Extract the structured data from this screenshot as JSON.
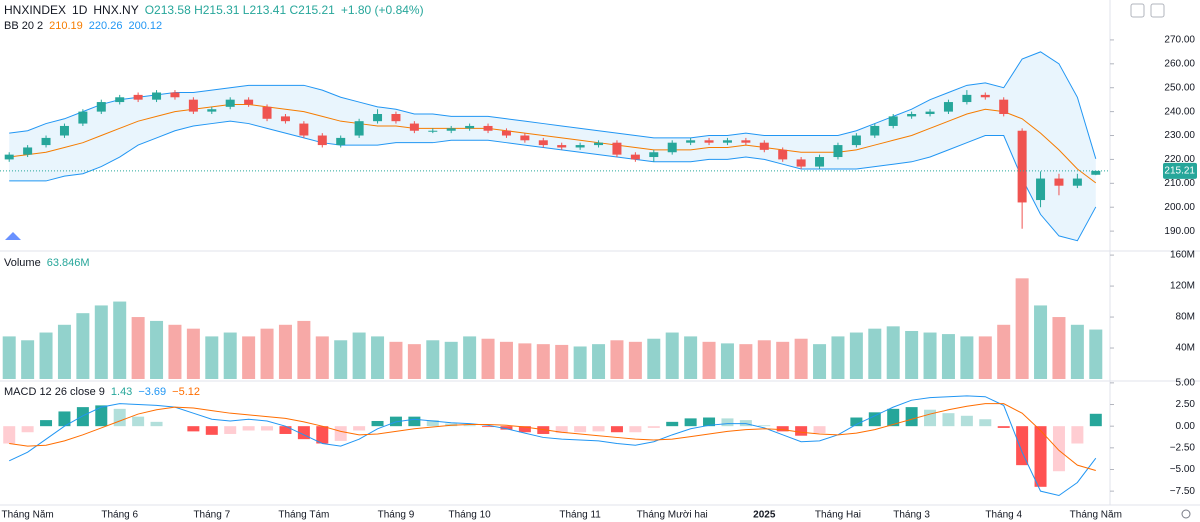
{
  "header": {
    "symbol": "HNXINDEX",
    "interval": "1D",
    "exchange": "HNX.NY",
    "ohlc": "O213.58 H215.31 L213.41 C215.21",
    "change": "+1.80 (+0.84%)"
  },
  "chart_data": [
    {
      "type": "candlestick",
      "title": "BB 20 2",
      "open": [
        220,
        222,
        226,
        230,
        235,
        240,
        244,
        247,
        245,
        248,
        245,
        240,
        242,
        245,
        242,
        238,
        235,
        230,
        226,
        230,
        236,
        239,
        235,
        232,
        232,
        233,
        234,
        232,
        230,
        228,
        226,
        225,
        226,
        227,
        222,
        221,
        223,
        227,
        228,
        227,
        228,
        227,
        224,
        220,
        217,
        221,
        226,
        230,
        234,
        238,
        239,
        240,
        244,
        247,
        245,
        232,
        203,
        212,
        209,
        213.58
      ],
      "high": [
        223,
        226,
        230,
        235,
        241,
        245,
        247,
        248,
        249,
        249,
        246,
        242,
        246,
        246,
        243,
        239,
        236,
        231,
        230,
        237,
        241,
        240,
        236,
        233,
        234,
        235,
        235,
        233,
        231,
        229,
        227,
        227,
        228,
        228,
        223,
        224,
        228,
        229,
        229,
        229,
        229,
        228,
        225,
        221,
        222,
        227,
        231,
        235,
        239,
        240,
        241,
        245,
        249,
        248,
        246,
        233,
        215,
        214,
        214,
        215.31
      ],
      "low": [
        219,
        221,
        225,
        229,
        234,
        239,
        243,
        244,
        244,
        245,
        239,
        239,
        241,
        242,
        236,
        235,
        229,
        225,
        225,
        229,
        235,
        235,
        231,
        231,
        231,
        232,
        231,
        229,
        227,
        225,
        224,
        224,
        225,
        221,
        219,
        219,
        222,
        226,
        226,
        226,
        226,
        223,
        219,
        216,
        216,
        220,
        225,
        229,
        233,
        237,
        238,
        239,
        243,
        245,
        238,
        191,
        200,
        205,
        208,
        213.41
      ],
      "close": [
        222,
        225,
        229,
        234,
        240,
        244,
        246,
        245,
        248,
        246,
        240,
        241,
        245,
        243,
        237,
        236,
        230,
        226,
        229,
        236,
        239,
        236,
        232,
        232,
        233,
        234,
        232,
        230,
        228,
        226,
        225,
        226,
        227,
        222,
        220,
        223,
        227,
        228,
        227,
        228,
        227,
        224,
        220,
        217,
        221,
        226,
        230,
        234,
        238,
        239,
        240,
        244,
        247,
        246,
        239,
        202,
        212,
        209,
        212,
        215.21
      ],
      "up_color": "#26a69a",
      "down_color": "#ef5350",
      "bands": {
        "middle": [
          221,
          222,
          223,
          225,
          227,
          230,
          233,
          236,
          238,
          240,
          241,
          242,
          243,
          243,
          242,
          241,
          240,
          238,
          236,
          235,
          234,
          234,
          233,
          233,
          233,
          233,
          233,
          232,
          231,
          230,
          229,
          228,
          227,
          226,
          225,
          224,
          224,
          224,
          225,
          225,
          226,
          225,
          224,
          223,
          223,
          223,
          224,
          226,
          228,
          230,
          233,
          236,
          239,
          241,
          240,
          237,
          231,
          224,
          216,
          210.19
        ],
        "upper": [
          231,
          232,
          235,
          237,
          240,
          243,
          245,
          246,
          247,
          248,
          248,
          249,
          250,
          251,
          251,
          251,
          251,
          249,
          246,
          244,
          242,
          241,
          239,
          239,
          238,
          238,
          238,
          237,
          236,
          235,
          234,
          233,
          232,
          231,
          230,
          229,
          229,
          229,
          230,
          230,
          231,
          230,
          230,
          230,
          230,
          230,
          232,
          235,
          238,
          241,
          245,
          248,
          251,
          252,
          250,
          262,
          265,
          260,
          246,
          220.26
        ],
        "lower": [
          211,
          211,
          211,
          213,
          214,
          217,
          221,
          226,
          229,
          232,
          234,
          235,
          236,
          235,
          233,
          231,
          229,
          227,
          226,
          226,
          226,
          227,
          227,
          227,
          228,
          228,
          228,
          227,
          226,
          225,
          224,
          223,
          222,
          221,
          220,
          219,
          219,
          219,
          220,
          220,
          221,
          220,
          218,
          216,
          216,
          216,
          216,
          217,
          218,
          219,
          221,
          224,
          227,
          230,
          230,
          212,
          197,
          188,
          186,
          200.12
        ],
        "middle_color": "#f57c00",
        "band_color": "#2196f3",
        "fill_color": "#e3f2fd"
      },
      "ylim": [
        182.1,
        286.7
      ],
      "yticks": [
        {
          "value": 190,
          "label": "190.00"
        },
        {
          "value": 200,
          "label": "200.00"
        },
        {
          "value": 210,
          "label": "210.00"
        },
        {
          "value": 220,
          "label": "220.00"
        },
        {
          "value": 230,
          "label": "230.00"
        },
        {
          "value": 240,
          "label": "240.00"
        },
        {
          "value": 250,
          "label": "250.00"
        },
        {
          "value": 260,
          "label": "260.00"
        },
        {
          "value": 270,
          "label": "270.00"
        }
      ]
    },
    {
      "type": "bar",
      "title": "Volume",
      "legend_value": "63.846M",
      "values": [
        55,
        50,
        60,
        70,
        85,
        95,
        100,
        80,
        75,
        70,
        65,
        55,
        60,
        55,
        65,
        70,
        75,
        55,
        50,
        60,
        55,
        48,
        45,
        50,
        48,
        55,
        52,
        48,
        46,
        45,
        44,
        42,
        45,
        50,
        48,
        52,
        60,
        55,
        48,
        46,
        45,
        50,
        48,
        52,
        45,
        55,
        60,
        65,
        68,
        62,
        60,
        58,
        55,
        55,
        70,
        130,
        95,
        80,
        70,
        63.846
      ],
      "ylim": [
        0,
        164
      ],
      "yticks": [
        {
          "value": 40,
          "label": "40M"
        },
        {
          "value": 80,
          "label": "80M"
        },
        {
          "value": 120,
          "label": "120M"
        },
        {
          "value": 160,
          "label": "160M"
        }
      ]
    },
    {
      "type": "macd",
      "title": "MACD 12 26 close 9",
      "legend_values": [
        "1.43",
        "−3.69",
        "−5.12"
      ],
      "histogram": [
        -2.0,
        -0.7,
        0.7,
        1.7,
        2.2,
        2.4,
        2.0,
        1.1,
        0.5,
        0.0,
        -0.6,
        -1.0,
        -0.9,
        -0.5,
        -0.5,
        -0.9,
        -1.5,
        -2.0,
        -1.7,
        -0.5,
        0.6,
        1.1,
        1.1,
        0.7,
        0.3,
        0.1,
        -0.1,
        -0.4,
        -0.7,
        -0.9,
        -0.8,
        -0.7,
        -0.6,
        -0.7,
        -0.7,
        -0.2,
        0.5,
        0.9,
        1.0,
        0.9,
        0.7,
        0.1,
        -0.6,
        -1.1,
        -0.8,
        0.0,
        1.0,
        1.6,
        2.0,
        2.2,
        1.9,
        1.5,
        1.2,
        0.8,
        -0.2,
        -4.5,
        -7.0,
        -5.2,
        -2.0,
        1.43
      ],
      "macd": [
        -4.0,
        -3.0,
        -1.5,
        0.0,
        1.2,
        2.2,
        2.6,
        2.5,
        2.4,
        2.2,
        1.5,
        0.8,
        0.6,
        0.8,
        0.6,
        0.0,
        -1.0,
        -2.0,
        -2.3,
        -1.5,
        -0.3,
        0.5,
        0.8,
        0.6,
        0.4,
        0.3,
        0.1,
        -0.3,
        -0.8,
        -1.3,
        -1.5,
        -1.6,
        -1.7,
        -2.0,
        -2.2,
        -1.8,
        -1.0,
        -0.3,
        0.1,
        0.3,
        0.3,
        -0.2,
        -1.0,
        -1.8,
        -1.7,
        -1.0,
        0.2,
        1.2,
        2.2,
        3.0,
        3.3,
        3.4,
        3.5,
        3.4,
        2.4,
        -3.0,
        -7.5,
        -8.0,
        -6.5,
        -3.69
      ],
      "signal": [
        -2.0,
        -2.3,
        -2.2,
        -1.7,
        -1.0,
        -0.2,
        0.6,
        1.4,
        1.9,
        2.2,
        2.1,
        1.8,
        1.5,
        1.3,
        1.1,
        0.9,
        0.5,
        0.0,
        -0.6,
        -1.0,
        -0.9,
        -0.6,
        -0.3,
        -0.1,
        0.1,
        0.2,
        0.2,
        0.1,
        -0.1,
        -0.4,
        -0.7,
        -0.9,
        -1.1,
        -1.3,
        -1.5,
        -1.6,
        -1.5,
        -1.2,
        -0.9,
        -0.6,
        -0.4,
        -0.3,
        -0.4,
        -0.7,
        -0.9,
        -1.0,
        -0.8,
        -0.4,
        0.2,
        0.8,
        1.4,
        1.9,
        2.3,
        2.6,
        2.6,
        1.5,
        -0.5,
        -2.8,
        -4.5,
        -5.12
      ],
      "macd_color": "#2196f3",
      "signal_color": "#ff6d00",
      "hist_colors": [
        "#26a69a",
        "#b2dfdb",
        "#ffcdd2",
        "#ff5252"
      ],
      "ylim": [
        -9.1,
        5.1
      ],
      "yticks": [
        {
          "value": 5,
          "label": "5.00"
        },
        {
          "value": 2.5,
          "label": "2.50"
        },
        {
          "value": 0,
          "label": "0.00"
        },
        {
          "value": -2.5,
          "label": "−2.50"
        },
        {
          "value": -5,
          "label": "−5.00"
        },
        {
          "value": -7.5,
          "label": "−7.50"
        }
      ],
      "categories": [
        null,
        "Tháng Năm",
        null,
        null,
        null,
        null,
        "Tháng 6",
        null,
        null,
        null,
        null,
        "Tháng 7",
        null,
        null,
        null,
        null,
        "Tháng Tám",
        null,
        null,
        null,
        null,
        "Tháng 9",
        null,
        null,
        null,
        "Tháng 10",
        null,
        null,
        null,
        null,
        null,
        "Tháng 11",
        null,
        null,
        null,
        null,
        "Tháng Mười hai",
        null,
        null,
        null,
        null,
        "2025",
        null,
        null,
        null,
        "Tháng Hai",
        null,
        null,
        null,
        "Tháng 3",
        null,
        null,
        null,
        null,
        "Tháng 4",
        null,
        null,
        null,
        null,
        "Tháng Năm"
      ]
    }
  ]
}
